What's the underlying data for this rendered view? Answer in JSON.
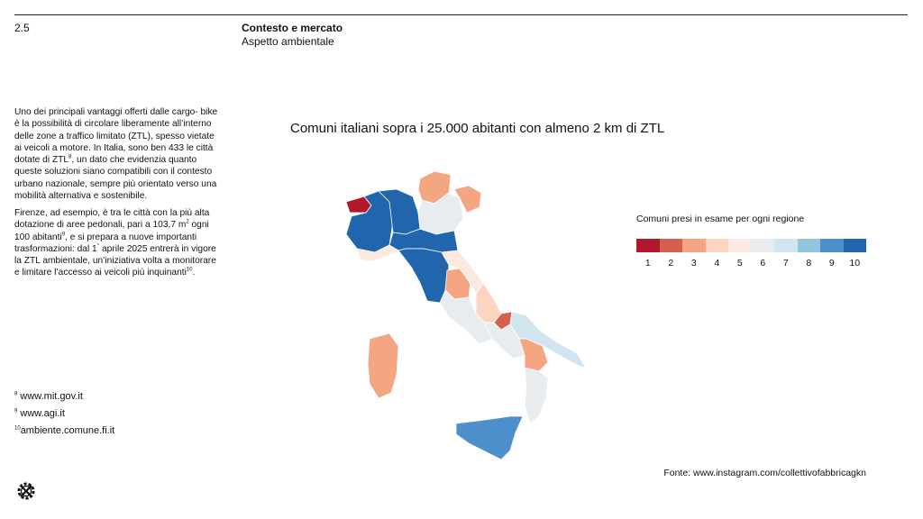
{
  "header": {
    "page_number": "2.5",
    "section_title": "Contesto e mercato",
    "section_subtitle": "Aspetto ambientale"
  },
  "body": {
    "p1_a": "Uno dei principali vantaggi offerti dalle cargo- bike è la possibilità di circolare liberamente all’interno delle zone a traffico limitato (ZTL), spesso vietate ai veicoli a motore. In Italia, sono ben 433 le città dotate di ZTL",
    "p1_ref": "8",
    "p1_b": ", un dato che evidenzia quanto queste soluzioni siano compatibili con il contesto urbano nazionale, sempre più orientato verso una mobilità alternativa e sostenibile.",
    "p2_a": "Firenze, ad esempio, è tra le città con la più alta dotazione di aree pedonali, pari a 103,7 m",
    "p2_sq": "2",
    "p2_b": " ogni 100 abitanti",
    "p2_ref": "9",
    "p2_c": ", e si prepara a nuove importanti trasformazioni: dal 1",
    "p2_deg": "°",
    "p2_d": " aprile 2025 entrerà in vigore la ZTL ambientale, un’iniziativa volta a monitorare e limitare l’accesso ai veicoli più inquinanti",
    "p2_ref2": "10",
    "p2_e": "."
  },
  "footnotes": [
    {
      "num": "8",
      "text": "www.mit.gov.it"
    },
    {
      "num": "9",
      "text": "www.agi.it"
    },
    {
      "num": "10",
      "text": "ambiente.comune.fi.it"
    }
  ],
  "map": {
    "title": "Comuni italiani sopra i 25.000 abitanti con almeno 2 km di ZTL",
    "legend_title": "Comuni presi in esame per ogni regione",
    "scale": [
      {
        "label": "1",
        "color": "#b2182b"
      },
      {
        "label": "2",
        "color": "#d6604d"
      },
      {
        "label": "3",
        "color": "#f4a582"
      },
      {
        "label": "4",
        "color": "#fbd5c2"
      },
      {
        "label": "5",
        "color": "#fbe9df"
      },
      {
        "label": "6",
        "color": "#e8ecee"
      },
      {
        "label": "7",
        "color": "#d1e5f0"
      },
      {
        "label": "8",
        "color": "#92c5de"
      },
      {
        "label": "9",
        "color": "#4d8fca"
      },
      {
        "label": "10",
        "color": "#2166ac"
      }
    ],
    "regions": [
      {
        "name": "Valle d'Aosta",
        "class": 1
      },
      {
        "name": "Piemonte",
        "class": 10
      },
      {
        "name": "Lombardia",
        "class": 10
      },
      {
        "name": "Trentino-Alto Adige",
        "class": 3
      },
      {
        "name": "Veneto",
        "class": 6
      },
      {
        "name": "Friuli-Venezia Giulia",
        "class": 3
      },
      {
        "name": "Liguria",
        "class": 5
      },
      {
        "name": "Emilia-Romagna",
        "class": 10
      },
      {
        "name": "Toscana",
        "class": 10
      },
      {
        "name": "Umbria",
        "class": 3
      },
      {
        "name": "Marche",
        "class": 5
      },
      {
        "name": "Lazio",
        "class": 6
      },
      {
        "name": "Abruzzo",
        "class": 4
      },
      {
        "name": "Molise",
        "class": 2
      },
      {
        "name": "Campania",
        "class": 6
      },
      {
        "name": "Puglia",
        "class": 7
      },
      {
        "name": "Basilicata",
        "class": 3
      },
      {
        "name": "Calabria",
        "class": 6
      },
      {
        "name": "Sicilia",
        "class": 9
      },
      {
        "name": "Sardegna",
        "class": 3
      }
    ]
  },
  "source": "Fonte: www.instagram.com/collettivofabbricagkn"
}
